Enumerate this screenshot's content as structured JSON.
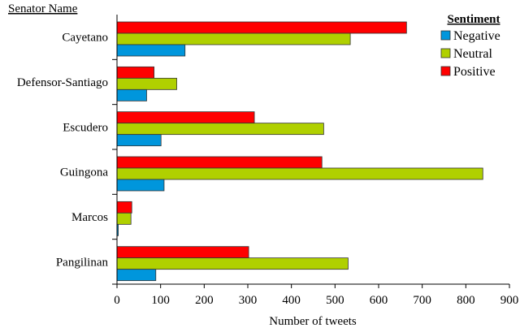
{
  "chart_data": {
    "type": "bar",
    "orientation": "horizontal",
    "ylabel": "Senator Name",
    "xlabel": "Number of tweets",
    "categories": [
      "Cayetano",
      "Defensor-Santiago",
      "Escudero",
      "Guingona",
      "Marcos",
      "Pangilinan"
    ],
    "series": [
      {
        "name": "Positive",
        "color": "#ff0000",
        "values": [
          664,
          85,
          315,
          470,
          34,
          302
        ]
      },
      {
        "name": "Neutral",
        "color": "#b0d000",
        "values": [
          535,
          137,
          474,
          839,
          32,
          530
        ]
      },
      {
        "name": "Negative",
        "color": "#0096dc",
        "values": [
          156,
          68,
          101,
          108,
          3,
          89
        ]
      }
    ],
    "xlim": [
      0,
      900
    ],
    "xticks": [
      "0",
      "100",
      "200",
      "300",
      "400",
      "500",
      "600",
      "700",
      "800",
      "900"
    ],
    "grid": false,
    "legend": {
      "title": "Sentiment",
      "placement": "top-right",
      "entries": [
        "Negative",
        "Neutral",
        "Positive"
      ]
    }
  }
}
